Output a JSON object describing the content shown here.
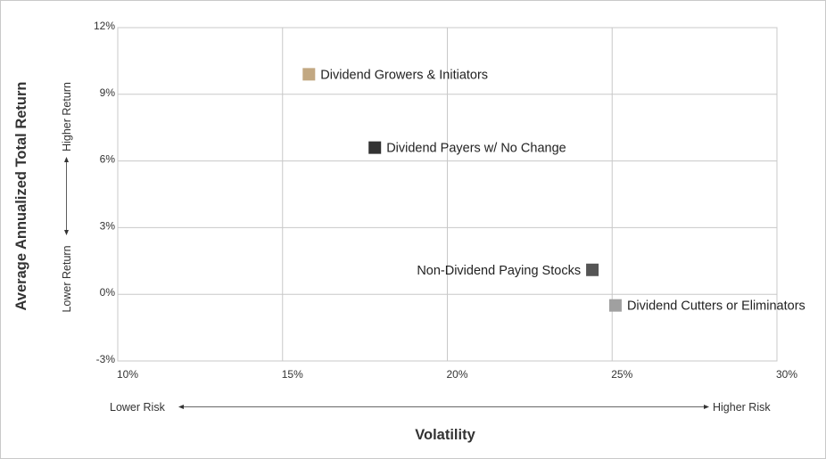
{
  "chart_data": {
    "type": "scatter",
    "title": "",
    "xlabel": "Volatility",
    "ylabel": "Average Annualized Total Return",
    "xlim": [
      10,
      30
    ],
    "ylim": [
      -3,
      12
    ],
    "x_ticks": [
      10,
      15,
      20,
      25,
      30
    ],
    "y_ticks": [
      -3,
      0,
      3,
      6,
      9,
      12
    ],
    "x_tick_labels": [
      "10%",
      "15%",
      "20%",
      "25%",
      "30%"
    ],
    "y_tick_labels": [
      "-3%",
      "0%",
      "3%",
      "6%",
      "9%",
      "12%"
    ],
    "grid": true,
    "legend": "none",
    "points": [
      {
        "label": "Dividend Growers & Initiators",
        "x": 15.8,
        "y": 9.9,
        "color": "#c2a882",
        "label_side": "right"
      },
      {
        "label": "Dividend Payers w/ No Change",
        "x": 17.8,
        "y": 6.6,
        "color": "#333333",
        "label_side": "right"
      },
      {
        "label": "Non-Dividend Paying Stocks",
        "x": 24.4,
        "y": 1.1,
        "color": "#555555",
        "label_side": "left"
      },
      {
        "label": "Dividend Cutters or Eliminators",
        "x": 25.1,
        "y": -0.5,
        "color": "#a0a0a0",
        "label_side": "right"
      }
    ],
    "x_direction": {
      "low": "Lower Risk",
      "high": "Higher Risk"
    },
    "y_direction": {
      "low": "Lower Return",
      "high": "Higher Return"
    }
  }
}
